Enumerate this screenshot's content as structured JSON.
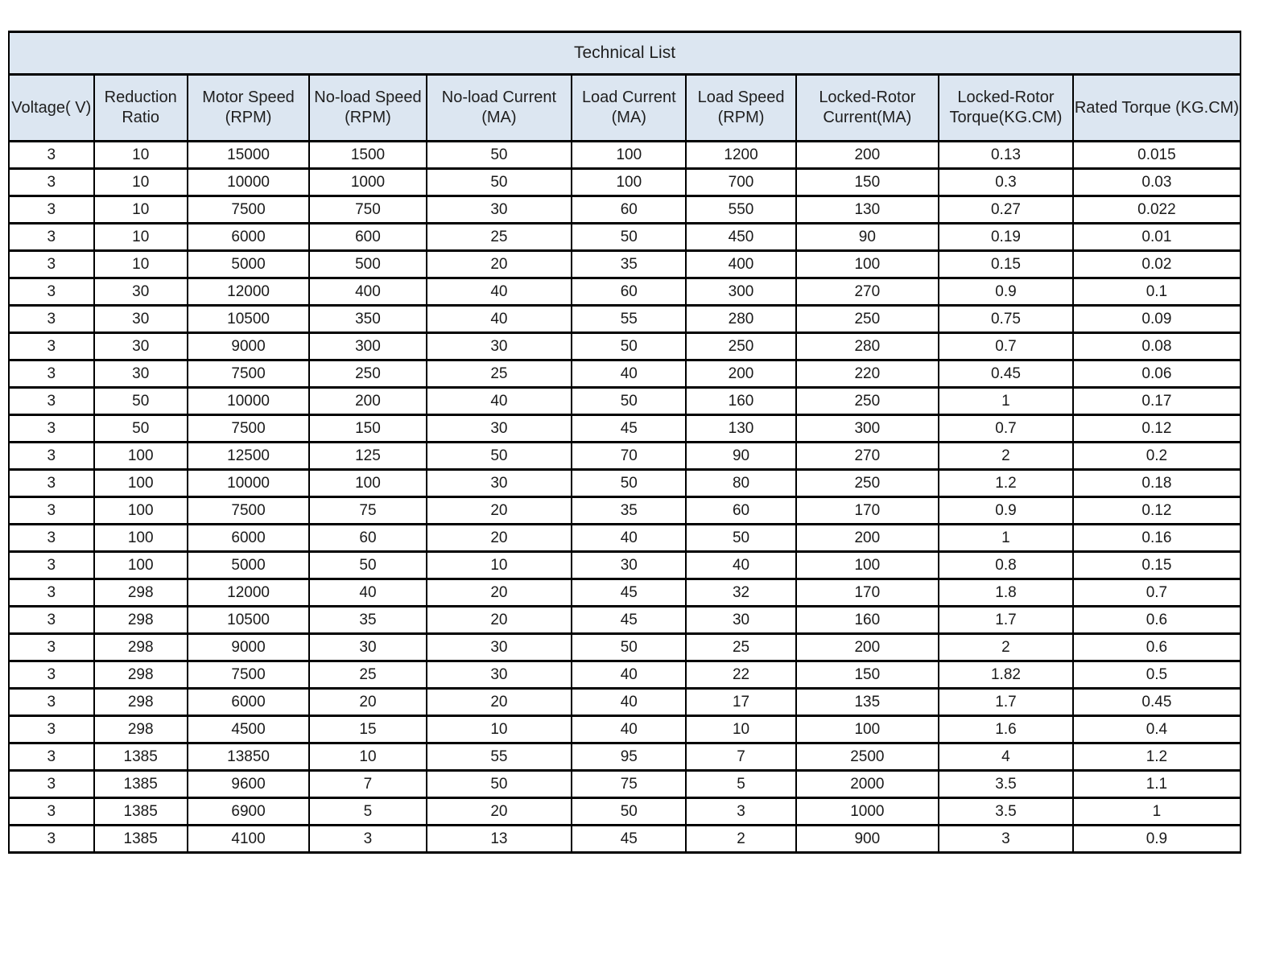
{
  "table": {
    "title": "Technical List",
    "columns": [
      "Voltage( V)",
      "Reduction Ratio",
      "Motor Speed (RPM)",
      "No-load Speed (RPM)",
      "No-load Current (MA)",
      "Load Current (MA)",
      "Load Speed (RPM)",
      "Locked-Rotor Current(MA)",
      "Locked-Rotor Torque(KG.CM)",
      "Rated Torque (KG.CM)"
    ],
    "rows": [
      [
        "3",
        "10",
        "15000",
        "1500",
        "50",
        "100",
        "1200",
        "200",
        "0.13",
        "0.015"
      ],
      [
        "3",
        "10",
        "10000",
        "1000",
        "50",
        "100",
        "700",
        "150",
        "0.3",
        "0.03"
      ],
      [
        "3",
        "10",
        "7500",
        "750",
        "30",
        "60",
        "550",
        "130",
        "0.27",
        "0.022"
      ],
      [
        "3",
        "10",
        "6000",
        "600",
        "25",
        "50",
        "450",
        "90",
        "0.19",
        "0.01"
      ],
      [
        "3",
        "10",
        "5000",
        "500",
        "20",
        "35",
        "400",
        "100",
        "0.15",
        "0.02"
      ],
      [
        "3",
        "30",
        "12000",
        "400",
        "40",
        "60",
        "300",
        "270",
        "0.9",
        "0.1"
      ],
      [
        "3",
        "30",
        "10500",
        "350",
        "40",
        "55",
        "280",
        "250",
        "0.75",
        "0.09"
      ],
      [
        "3",
        "30",
        "9000",
        "300",
        "30",
        "50",
        "250",
        "280",
        "0.7",
        "0.08"
      ],
      [
        "3",
        "30",
        "7500",
        "250",
        "25",
        "40",
        "200",
        "220",
        "0.45",
        "0.06"
      ],
      [
        "3",
        "50",
        "10000",
        "200",
        "40",
        "50",
        "160",
        "250",
        "1",
        "0.17"
      ],
      [
        "3",
        "50",
        "7500",
        "150",
        "30",
        "45",
        "130",
        "300",
        "0.7",
        "0.12"
      ],
      [
        "3",
        "100",
        "12500",
        "125",
        "50",
        "70",
        "90",
        "270",
        "2",
        "0.2"
      ],
      [
        "3",
        "100",
        "10000",
        "100",
        "30",
        "50",
        "80",
        "250",
        "1.2",
        "0.18"
      ],
      [
        "3",
        "100",
        "7500",
        "75",
        "20",
        "35",
        "60",
        "170",
        "0.9",
        "0.12"
      ],
      [
        "3",
        "100",
        "6000",
        "60",
        "20",
        "40",
        "50",
        "200",
        "1",
        "0.16"
      ],
      [
        "3",
        "100",
        "5000",
        "50",
        "10",
        "30",
        "40",
        "100",
        "0.8",
        "0.15"
      ],
      [
        "3",
        "298",
        "12000",
        "40",
        "20",
        "45",
        "32",
        "170",
        "1.8",
        "0.7"
      ],
      [
        "3",
        "298",
        "10500",
        "35",
        "20",
        "45",
        "30",
        "160",
        "1.7",
        "0.6"
      ],
      [
        "3",
        "298",
        "9000",
        "30",
        "30",
        "50",
        "25",
        "200",
        "2",
        "0.6"
      ],
      [
        "3",
        "298",
        "7500",
        "25",
        "30",
        "40",
        "22",
        "150",
        "1.82",
        "0.5"
      ],
      [
        "3",
        "298",
        "6000",
        "20",
        "20",
        "40",
        "17",
        "135",
        "1.7",
        "0.45"
      ],
      [
        "3",
        "298",
        "4500",
        "15",
        "10",
        "40",
        "10",
        "100",
        "1.6",
        "0.4"
      ],
      [
        "3",
        "1385",
        "13850",
        "10",
        "55",
        "95",
        "7",
        "2500",
        "4",
        "1.2"
      ],
      [
        "3",
        "1385",
        "9600",
        "7",
        "50",
        "75",
        "5",
        "2000",
        "3.5",
        "1.1"
      ],
      [
        "3",
        "1385",
        "6900",
        "5",
        "20",
        "50",
        "3",
        "1000",
        "3.5",
        "1"
      ],
      [
        "3",
        "1385",
        "4100",
        "3",
        "13",
        "45",
        "2",
        "900",
        "3",
        "0.9"
      ]
    ]
  },
  "colors": {
    "header_bg": "#dce6f1",
    "border": "#000000",
    "text": "#1a1a1a"
  }
}
